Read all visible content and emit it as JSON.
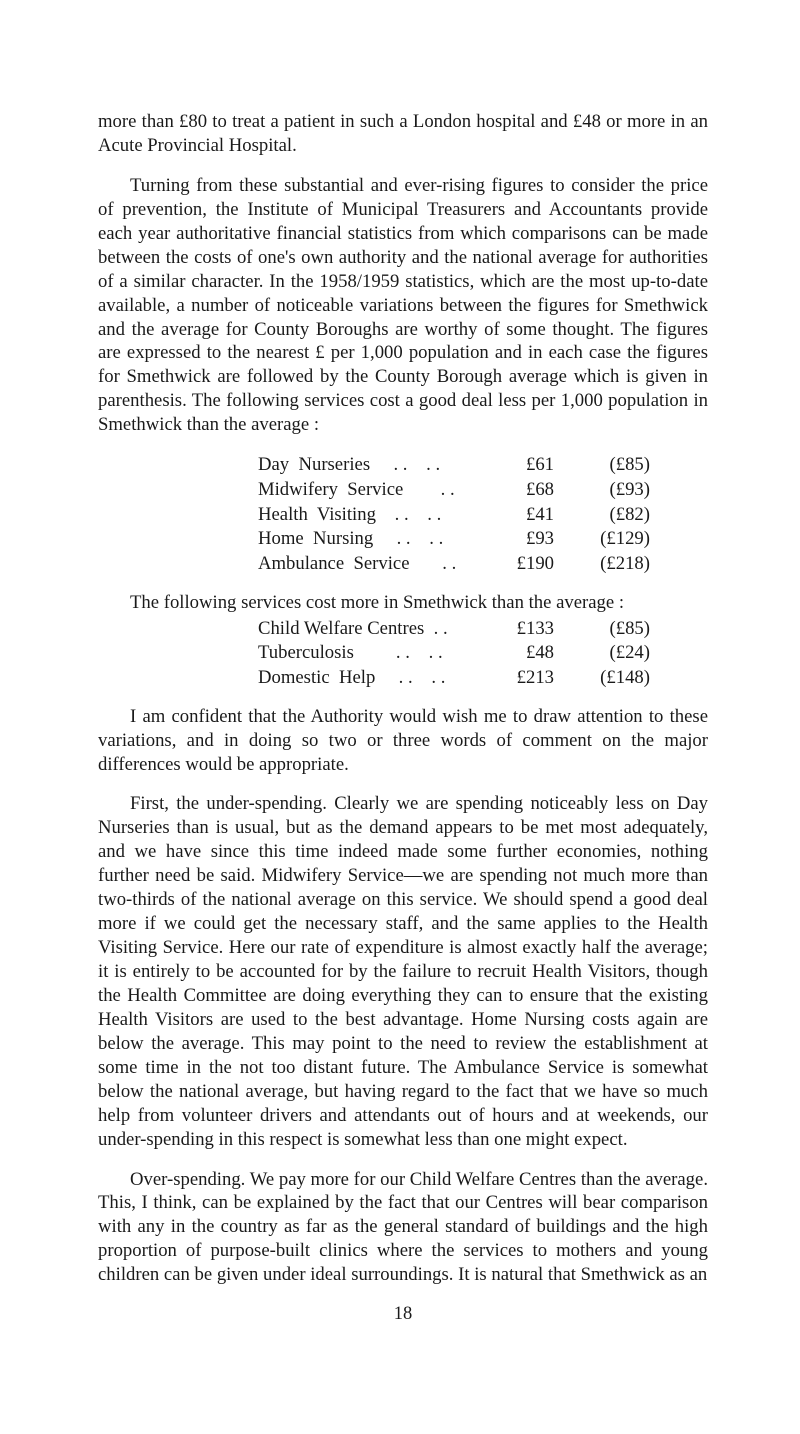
{
  "p1": "more than £80 to treat a patient in such a London hospital and £48 or more in an Acute Provincial Hospital.",
  "p2": "Turning from these substantial and ever-rising figures to consider the price of prevention, the Institute of Municipal Treasurers and Accountants provide each year authoritative financial statistics from which comparisons can be made between the costs of one's own authority and the national average for authorities of a similar character. In the 1958/1959 statistics, which are the most up-to-date available, a number of noticeable variations between the figures for Smethwick and the average for County Boroughs are worthy of some thought. The figures are expressed to the nearest £ per 1,000 population and in each case the figures for Smethwick are followed by the County Borough average which is given in parenthesis. The following services cost a good deal less per 1,000 population in Smethwick than the average :",
  "table1": [
    {
      "label": "Day  Nurseries     . .    . .",
      "v1": "£61",
      "v2": "(£85)"
    },
    {
      "label": "Midwifery  Service        . .",
      "v1": "£68",
      "v2": "(£93)"
    },
    {
      "label": "Health  Visiting    . .    . .",
      "v1": "£41",
      "v2": "(£82)"
    },
    {
      "label": "Home  Nursing     . .    . .",
      "v1": "£93",
      "v2": "(£129)"
    },
    {
      "label": "Ambulance  Service       . .",
      "v1": "£190",
      "v2": "(£218)"
    }
  ],
  "lead2": "The following services cost more in Smethwick than the average :",
  "table2": [
    {
      "label": "Child Welfare Centres  . .",
      "v1": "£133",
      "v2": "(£85)"
    },
    {
      "label": "Tuberculosis         . .    . .",
      "v1": "£48",
      "v2": "(£24)"
    },
    {
      "label": "Domestic  Help     . .    . .",
      "v1": "£213",
      "v2": "(£148)"
    }
  ],
  "p3": "I am confident that the Authority would wish me to draw attention to these variations, and in doing so two or three words of comment on the major differences would be appropriate.",
  "p4": "First, the under-spending. Clearly we are spending noticeably less on Day Nurseries than is usual, but as the demand appears to be met most adequately, and we have since this time indeed made some further economies, nothing further need be said. Midwifery Service—we are spending not much more than two-thirds of the national average on this service. We should spend a good deal more if we could get the necessary staff, and the same applies to the Health Visiting Service. Here our rate of expenditure is almost exactly half the average; it is entirely to be accounted for by the failure to recruit Health Visitors, though the Health Committee are doing everything they can to ensure that the existing Health Visitors are used to the best advantage. Home Nursing costs again are below the average. This may point to the need to review the establishment at some time in the not too distant future. The Ambulance Service is somewhat below the national average, but having regard to the fact that we have so much help from volunteer drivers and attendants out of hours and at weekends, our under-spending in this respect is somewhat less than one might expect.",
  "p5": "Over-spending. We pay more for our Child Welfare Centres than the average. This, I think, can be explained by the fact that our Centres will bear comparison with any in the country as far as the general standard of buildings and the high proportion of purpose-built clinics where the services to mothers and young children can be given under ideal surroundings. It is natural that Smethwick as an",
  "pagenum": "18"
}
